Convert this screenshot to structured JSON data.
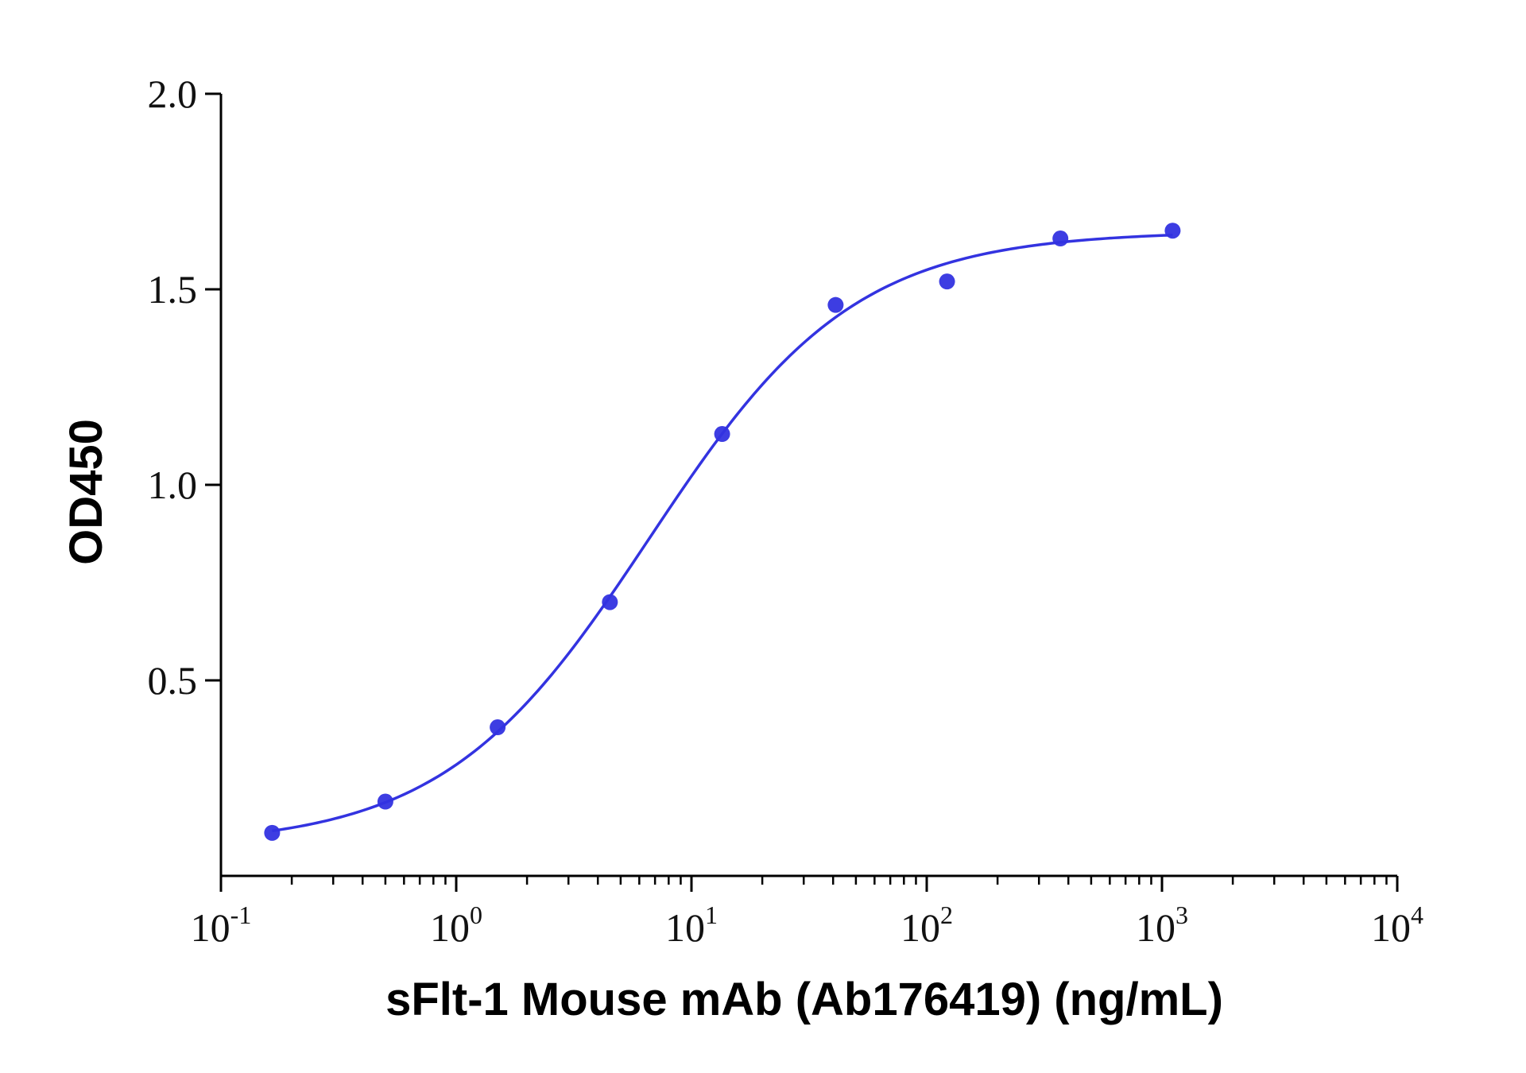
{
  "chart_data": {
    "type": "scatter",
    "title": "",
    "xlabel": "sFlt-1 Mouse mAb (Ab176419) (ng/mL)",
    "ylabel": "OD450",
    "x_scale": "log",
    "xlim": [
      0.1,
      10000
    ],
    "ylim": [
      0,
      2.0
    ],
    "x_ticks": [
      {
        "base": "10",
        "exp": "-1",
        "value": 0.1
      },
      {
        "base": "10",
        "exp": "0",
        "value": 1
      },
      {
        "base": "10",
        "exp": "1",
        "value": 10
      },
      {
        "base": "10",
        "exp": "2",
        "value": 100
      },
      {
        "base": "10",
        "exp": "3",
        "value": 1000
      },
      {
        "base": "10",
        "exp": "4",
        "value": 10000
      }
    ],
    "y_ticks": [
      {
        "label": "0.5",
        "value": 0.5
      },
      {
        "label": "1.0",
        "value": 1.0
      },
      {
        "label": "1.5",
        "value": 1.5
      },
      {
        "label": "2.0",
        "value": 2.0
      }
    ],
    "grid": false,
    "legend": "none",
    "series": [
      {
        "x": [
          0.165,
          0.5,
          1.5,
          4.5,
          13.5,
          41,
          122,
          370,
          1110
        ],
        "y": [
          0.11,
          0.19,
          0.38,
          0.7,
          1.13,
          1.46,
          1.52,
          1.63,
          1.65
        ],
        "color": "#3333e0",
        "fit_curve": "four-parameter logistic"
      }
    ]
  }
}
